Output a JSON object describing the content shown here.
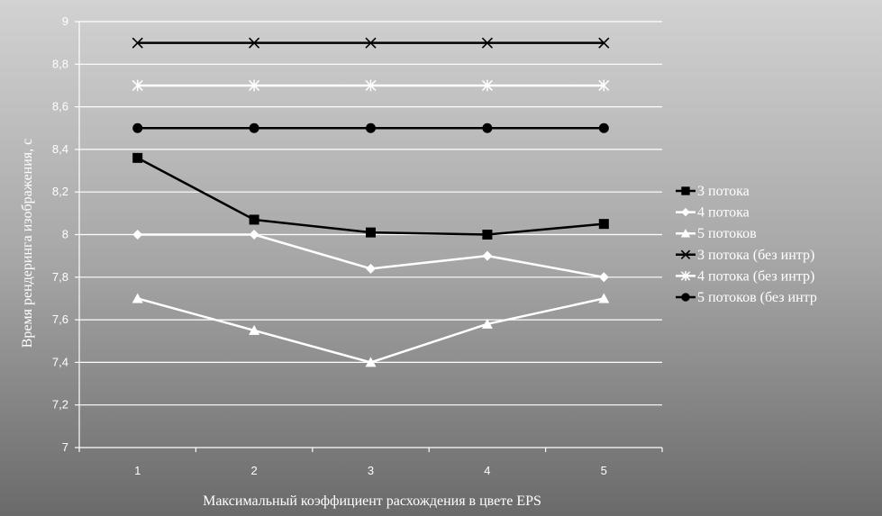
{
  "chart_data": {
    "type": "line",
    "title": "",
    "xlabel": "Максимальный коэффициент расхождения в цвете EPS",
    "ylabel": "Время рендеринга изображения, с",
    "categories": [
      "1",
      "2",
      "3",
      "4",
      "5"
    ],
    "ylim": [
      7,
      9
    ],
    "yticks": [
      7,
      7.2,
      7.4,
      7.6,
      7.8,
      8,
      8.2,
      8.4,
      8.6,
      8.8,
      9
    ],
    "ytick_labels": [
      "7",
      "7,2",
      "7,4",
      "7,6",
      "7,8",
      "8",
      "8,2",
      "8,4",
      "8,6",
      "8,8",
      "9"
    ],
    "grid": true,
    "legend_position": "right",
    "series": [
      {
        "name": "3 потока",
        "values": [
          8.36,
          8.07,
          8.01,
          8.0,
          8.05
        ],
        "color": "#000000",
        "marker": "square"
      },
      {
        "name": "4 потока",
        "values": [
          8.0,
          8.0,
          7.84,
          7.9,
          7.8
        ],
        "color": "#ffffff",
        "marker": "diamond"
      },
      {
        "name": "5 потоков",
        "values": [
          7.7,
          7.55,
          7.4,
          7.58,
          7.7
        ],
        "color": "#ffffff",
        "marker": "triangle"
      },
      {
        "name": "3 потока (без интр)",
        "values": [
          8.9,
          8.9,
          8.9,
          8.9,
          8.9
        ],
        "color": "#000000",
        "marker": "x"
      },
      {
        "name": "4 потока (без интр)",
        "values": [
          8.7,
          8.7,
          8.7,
          8.7,
          8.7
        ],
        "color": "#ffffff",
        "marker": "star"
      },
      {
        "name": "5 потоков (без интр",
        "values": [
          8.5,
          8.5,
          8.5,
          8.5,
          8.5
        ],
        "color": "#000000",
        "marker": "circle"
      }
    ]
  }
}
